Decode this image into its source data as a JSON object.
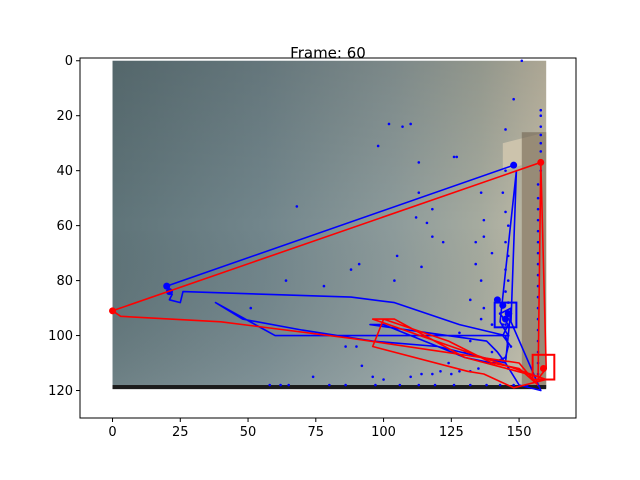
{
  "chart_data": {
    "type": "scatter",
    "title": "Frame: 60",
    "xlabel": "",
    "ylabel": "",
    "xlim": [
      -12,
      171
    ],
    "ylim": [
      130,
      -1
    ],
    "y_inverted": true,
    "x_ticks": [
      "0",
      "25",
      "50",
      "75",
      "100",
      "125",
      "150"
    ],
    "y_ticks": [
      "0",
      "20",
      "40",
      "60",
      "80",
      "100",
      "120"
    ],
    "grid": false,
    "background_image": {
      "x_range": [
        0,
        160
      ],
      "y_range": [
        0,
        119
      ]
    },
    "colors": {
      "blue": "#0000ff",
      "red": "#ff0000"
    },
    "series": [
      {
        "color": "#0000ff",
        "type": "line",
        "points": [
          [
            148,
            38
          ],
          [
            20,
            82
          ],
          [
            22,
            85
          ],
          [
            21,
            87
          ],
          [
            25,
            88
          ],
          [
            26,
            84
          ],
          [
            88,
            86
          ],
          [
            104,
            88
          ],
          [
            128,
            96
          ],
          [
            145,
            100
          ],
          [
            146,
            104
          ],
          [
            145,
            108
          ],
          [
            140,
            110
          ],
          [
            130,
            108
          ],
          [
            120,
            104
          ],
          [
            100,
            96
          ],
          [
            95,
            96
          ],
          [
            138,
            102
          ],
          [
            142,
            106
          ],
          [
            145,
            110
          ],
          [
            150,
            118
          ],
          [
            158,
            120
          ],
          [
            147,
            95
          ],
          [
            149,
            40
          ],
          [
            143,
            95
          ],
          [
            146,
            100
          ],
          [
            140,
            100
          ],
          [
            60,
            100
          ],
          [
            38,
            88
          ],
          [
            48,
            94
          ],
          [
            70,
            98
          ],
          [
            96,
            102
          ],
          [
            120,
            104
          ],
          [
            145,
            110
          ],
          [
            147,
            90
          ],
          [
            143,
            92
          ],
          [
            146,
            96
          ],
          [
            144,
            100
          ],
          [
            147,
            104
          ]
        ]
      },
      {
        "color": "#0000ff",
        "type": "markers",
        "points": [
          [
            148,
            38
          ],
          [
            20,
            82
          ],
          [
            21,
            84
          ],
          [
            142,
            87
          ],
          [
            144,
            89
          ],
          [
            146,
            92
          ],
          [
            145,
            94
          ]
        ]
      },
      {
        "color": "#0000ff",
        "type": "rect",
        "points": [
          [
            141,
            88
          ],
          [
            149,
            97
          ]
        ]
      },
      {
        "color": "#0000ff",
        "type": "scatter",
        "points": [
          [
            151,
            0
          ],
          [
            148,
            14
          ],
          [
            102,
            23
          ],
          [
            107,
            24
          ],
          [
            110,
            23
          ],
          [
            113,
            37
          ],
          [
            98,
            31
          ],
          [
            126,
            35
          ],
          [
            127,
            35
          ],
          [
            158,
            18
          ],
          [
            158,
            20
          ],
          [
            158,
            24
          ],
          [
            158,
            27
          ],
          [
            158,
            30
          ],
          [
            158,
            33
          ],
          [
            158,
            37
          ],
          [
            158,
            40
          ],
          [
            157,
            45
          ],
          [
            157,
            50
          ],
          [
            157,
            54
          ],
          [
            157,
            58
          ],
          [
            157,
            62
          ],
          [
            157,
            66
          ],
          [
            157,
            70
          ],
          [
            157,
            74
          ],
          [
            157,
            78
          ],
          [
            157,
            82
          ],
          [
            157,
            86
          ],
          [
            157,
            90
          ],
          [
            157,
            94
          ],
          [
            157,
            98
          ],
          [
            157,
            102
          ],
          [
            157,
            106
          ],
          [
            157,
            110
          ],
          [
            157,
            114
          ],
          [
            157,
            118
          ],
          [
            145,
            25
          ],
          [
            145,
            40
          ],
          [
            144,
            48
          ],
          [
            145,
            55
          ],
          [
            146,
            60
          ],
          [
            145,
            66
          ],
          [
            146,
            71
          ],
          [
            145,
            76
          ],
          [
            146,
            80
          ],
          [
            145,
            84
          ],
          [
            146,
            88
          ],
          [
            147,
            92
          ],
          [
            145,
            96
          ],
          [
            146,
            100
          ],
          [
            147,
            104
          ],
          [
            145,
            108
          ],
          [
            146,
            112
          ],
          [
            136,
            48
          ],
          [
            137,
            58
          ],
          [
            137,
            64
          ],
          [
            134,
            66
          ],
          [
            140,
            70
          ],
          [
            134,
            74
          ],
          [
            136,
            80
          ],
          [
            132,
            87
          ],
          [
            137,
            90
          ],
          [
            140,
            96
          ],
          [
            136,
            94
          ],
          [
            128,
            99
          ],
          [
            130,
            106
          ],
          [
            124,
            110
          ],
          [
            121,
            113
          ],
          [
            132,
            113
          ],
          [
            118,
            114
          ],
          [
            114,
            114
          ],
          [
            110,
            115
          ],
          [
            106,
            118
          ],
          [
            100,
            116
          ],
          [
            96,
            115
          ],
          [
            92,
            111
          ],
          [
            90,
            104
          ],
          [
            86,
            104
          ],
          [
            88,
            76
          ],
          [
            91,
            74
          ],
          [
            105,
            71
          ],
          [
            104,
            80
          ],
          [
            113,
            48
          ],
          [
            112,
            57
          ],
          [
            118,
            54
          ],
          [
            116,
            59
          ],
          [
            118,
            64
          ],
          [
            114,
            75
          ],
          [
            122,
            66
          ],
          [
            68,
            53
          ],
          [
            64,
            80
          ],
          [
            78,
            82
          ],
          [
            51,
            90
          ],
          [
            74,
            115
          ],
          [
            58,
            118
          ],
          [
            62,
            118
          ],
          [
            65,
            118
          ],
          [
            80,
            118
          ],
          [
            86,
            118
          ],
          [
            97,
            118
          ],
          [
            113,
            118
          ],
          [
            119,
            118
          ],
          [
            126,
            118
          ],
          [
            132,
            118
          ],
          [
            138,
            118
          ],
          [
            143,
            118
          ],
          [
            148,
            118
          ],
          [
            153,
            118
          ],
          [
            140,
            106
          ],
          [
            141,
            110
          ],
          [
            135,
            112
          ],
          [
            128,
            113
          ],
          [
            125,
            114
          ],
          [
            132,
            102
          ],
          [
            143,
            92
          ],
          [
            144,
            96
          ]
        ]
      },
      {
        "color": "#ff0000",
        "type": "line",
        "points": [
          [
            158,
            37
          ],
          [
            0,
            91
          ],
          [
            3,
            93
          ],
          [
            40,
            95
          ],
          [
            88,
            101
          ],
          [
            150,
            110
          ],
          [
            156,
            117
          ],
          [
            160,
            112
          ],
          [
            158,
            37
          ],
          [
            157,
            115
          ],
          [
            130,
            108
          ],
          [
            104,
            94
          ],
          [
            96,
            94
          ],
          [
            160,
            116
          ],
          [
            148,
            119
          ],
          [
            137,
            114
          ],
          [
            131,
            113
          ],
          [
            96,
            104
          ],
          [
            100,
            94
          ],
          [
            124,
            102
          ],
          [
            140,
            110
          ],
          [
            150,
            112
          ],
          [
            157,
            118
          ]
        ]
      },
      {
        "color": "#ff0000",
        "type": "markers",
        "points": [
          [
            0,
            91
          ],
          [
            158,
            37
          ],
          [
            159,
            112
          ]
        ]
      },
      {
        "color": "#ff0000",
        "type": "rect",
        "points": [
          [
            155,
            107
          ],
          [
            163,
            116
          ]
        ]
      }
    ]
  }
}
